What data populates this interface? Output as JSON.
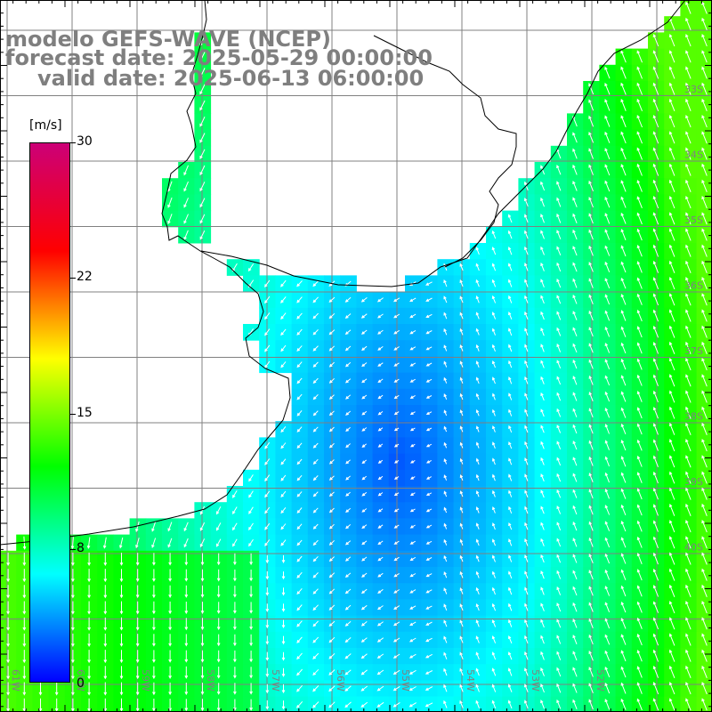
{
  "header": {
    "line1": "modelo GEFS-WAVE (NCEP)",
    "line2": "forecast date: 2025-05-29 00:00:00",
    "line3": "valid date: 2025-06-13 06:00:00"
  },
  "colorbar": {
    "unit": "[m/s]",
    "labels": [
      "30",
      "22",
      "15",
      "8",
      "0"
    ],
    "stops": [
      "#0000ff",
      "#00ffff",
      "#00ff00",
      "#ffff00",
      "#ff0000",
      "#cc0077"
    ],
    "min": 0,
    "max": 30
  },
  "map": {
    "lat_labels": [
      "33S",
      "34S",
      "35S",
      "36S",
      "37S",
      "38S",
      "39S",
      "40S"
    ],
    "lon_labels": [
      "61W",
      "60W",
      "59W",
      "58W",
      "57W",
      "56W",
      "55W",
      "54W",
      "53W",
      "52W"
    ],
    "land_color": "#ffffff",
    "grid_color": "#808080",
    "coast_color": "#000000"
  }
}
